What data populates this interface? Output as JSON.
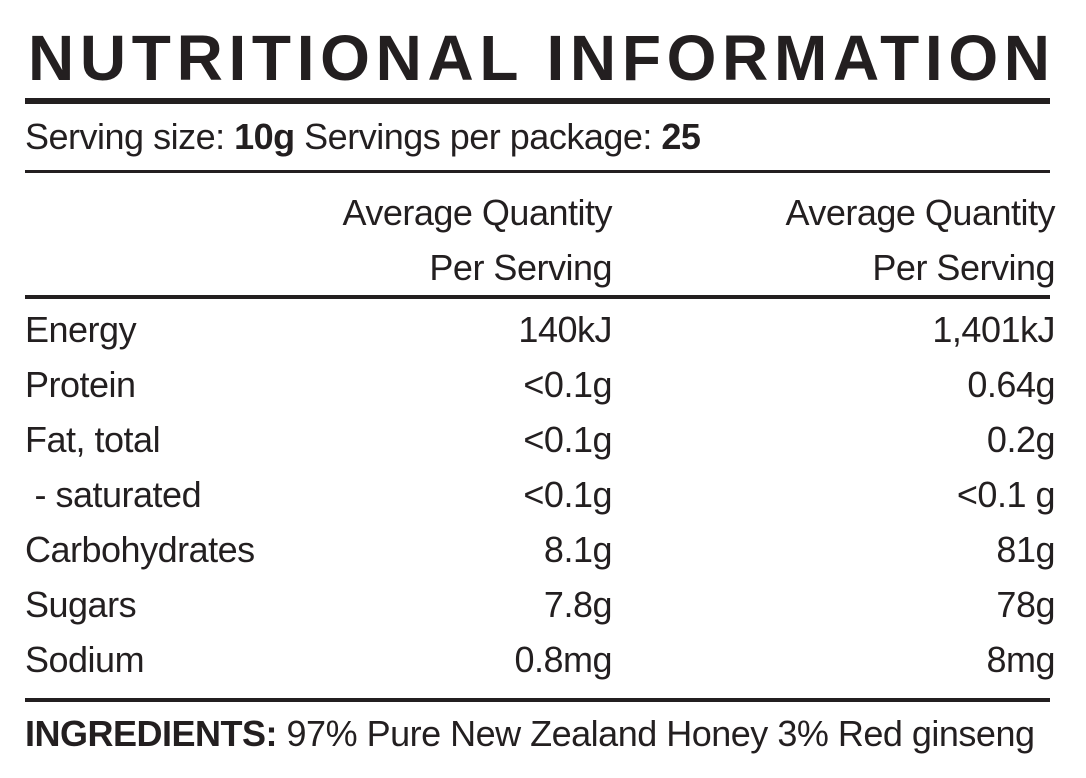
{
  "title": "NUTRITIONAL INFORMATION",
  "serving": {
    "size_label": "Serving size:",
    "size": "10g",
    "servings_label": "Servings per package:",
    "servings": "25"
  },
  "table": {
    "header": [
      "Average Quantity\nPer Serving",
      "Average Quantity\nPer Serving"
    ],
    "rows": [
      [
        "Energy",
        "140kJ",
        "1,401kJ"
      ],
      [
        "Protein",
        "<0.1g",
        "0.64g"
      ],
      [
        "Fat, total",
        "<0.1g",
        "0.2g"
      ],
      [
        " - saturated",
        "<0.1g",
        "<0.1 g"
      ],
      [
        "Carbohydrates",
        "8.1g",
        "81g"
      ],
      [
        "Sugars",
        "7.8g",
        "78g"
      ],
      [
        "Sodium",
        "0.8mg",
        "8mg"
      ]
    ]
  },
  "ingredients": {
    "label": "INGREDIENTS:",
    "text": "97% Pure New Zealand Honey 3% Red ginseng"
  }
}
